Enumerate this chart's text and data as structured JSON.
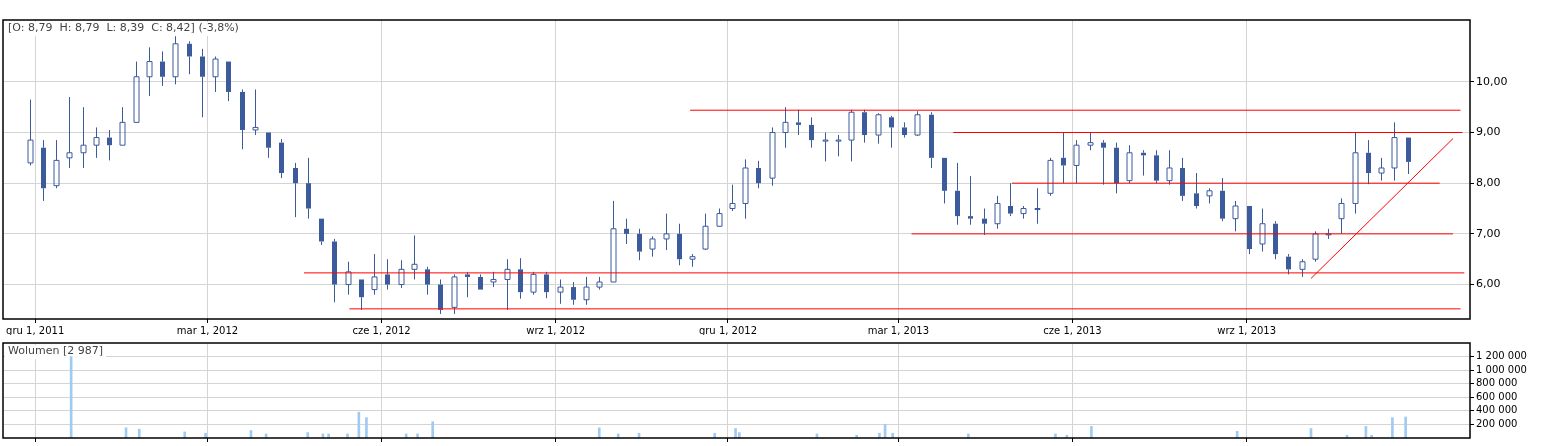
{
  "chart_data": [
    {
      "type": "candlestick",
      "annotations": [
        "[O: 8,79  H: 8,79  L: 8,39  C: 8,42] (-3,8%)"
      ],
      "color": "#3b5b9d",
      "x": [
        "2011-11-28",
        "2011-12-05",
        "2011-12-12",
        "2011-12-19",
        "2011-12-26",
        "2012-01-02",
        "2012-01-09",
        "2012-01-16",
        "2012-01-23",
        "2012-01-30",
        "2012-02-06",
        "2012-02-13",
        "2012-02-20",
        "2012-02-27",
        "2012-03-05",
        "2012-03-12",
        "2012-03-19",
        "2012-03-26",
        "2012-04-02",
        "2012-04-09",
        "2012-04-16",
        "2012-04-23",
        "2012-04-30",
        "2012-05-07",
        "2012-05-14",
        "2012-05-21",
        "2012-05-28",
        "2012-06-04",
        "2012-06-11",
        "2012-06-18",
        "2012-06-25",
        "2012-07-02",
        "2012-07-09",
        "2012-07-16",
        "2012-07-23",
        "2012-07-30",
        "2012-08-06",
        "2012-08-13",
        "2012-08-20",
        "2012-08-27",
        "2012-09-03",
        "2012-09-10",
        "2012-09-17",
        "2012-09-24",
        "2012-10-01",
        "2012-10-08",
        "2012-10-15",
        "2012-10-22",
        "2012-10-29",
        "2012-11-05",
        "2012-11-12",
        "2012-11-19",
        "2012-11-26",
        "2012-12-03",
        "2012-12-10",
        "2012-12-17",
        "2012-12-24",
        "2012-12-31",
        "2013-01-07",
        "2013-01-14",
        "2013-01-21",
        "2013-01-28",
        "2013-02-04",
        "2013-02-11",
        "2013-02-18",
        "2013-02-25",
        "2013-03-04",
        "2013-03-11",
        "2013-03-18",
        "2013-03-25",
        "2013-04-01",
        "2013-04-08",
        "2013-04-15",
        "2013-04-22",
        "2013-04-29",
        "2013-05-06",
        "2013-05-13",
        "2013-05-20",
        "2013-05-27",
        "2013-06-03",
        "2013-06-10",
        "2013-06-17",
        "2013-06-24",
        "2013-07-01",
        "2013-07-08",
        "2013-07-15",
        "2013-07-22",
        "2013-07-29",
        "2013-08-05",
        "2013-08-12",
        "2013-08-19",
        "2013-08-26",
        "2013-09-02",
        "2013-09-09",
        "2013-09-16",
        "2013-09-23",
        "2013-09-30",
        "2013-10-07",
        "2013-10-14",
        "2013-10-21",
        "2013-10-28",
        "2013-11-04",
        "2013-11-11",
        "2013-11-18",
        "2013-11-25"
      ],
      "ohlc": [
        [
          8.4,
          9.65,
          8.35,
          8.85
        ],
        [
          8.7,
          8.85,
          7.65,
          7.9
        ],
        [
          7.95,
          8.85,
          7.9,
          8.45
        ],
        [
          8.5,
          9.7,
          8.3,
          8.6
        ],
        [
          8.6,
          9.5,
          8.3,
          8.75
        ],
        [
          8.75,
          9.1,
          8.5,
          8.9
        ],
        [
          8.9,
          9.05,
          8.45,
          8.75
        ],
        [
          8.75,
          9.5,
          8.75,
          9.2
        ],
        [
          9.2,
          10.4,
          9.2,
          10.1
        ],
        [
          10.1,
          10.68,
          9.72,
          10.4
        ],
        [
          10.4,
          10.6,
          9.92,
          10.1
        ],
        [
          10.1,
          10.9,
          9.95,
          10.75
        ],
        [
          10.75,
          10.8,
          10.15,
          10.5
        ],
        [
          10.5,
          10.65,
          9.3,
          10.1
        ],
        [
          10.1,
          10.5,
          9.8,
          10.45
        ],
        [
          10.4,
          10.4,
          9.62,
          9.8
        ],
        [
          9.8,
          9.85,
          8.67,
          9.05
        ],
        [
          9.05,
          9.85,
          8.95,
          9.1
        ],
        [
          9.0,
          9.0,
          8.5,
          8.7
        ],
        [
          8.8,
          8.87,
          8.1,
          8.2
        ],
        [
          8.3,
          8.4,
          7.33,
          8.0
        ],
        [
          8.0,
          8.5,
          7.3,
          7.5
        ],
        [
          7.3,
          7.3,
          6.78,
          6.85
        ],
        [
          6.85,
          6.9,
          5.65,
          6.0
        ],
        [
          6.0,
          6.45,
          5.8,
          6.25
        ],
        [
          6.1,
          6.1,
          5.5,
          5.75
        ],
        [
          5.9,
          6.6,
          5.8,
          6.15
        ],
        [
          6.2,
          6.5,
          5.9,
          6.0
        ],
        [
          6.0,
          6.48,
          5.93,
          6.3
        ],
        [
          6.3,
          6.97,
          6.1,
          6.4
        ],
        [
          6.3,
          6.35,
          5.8,
          6.0
        ],
        [
          6.0,
          6.1,
          5.42,
          5.5
        ],
        [
          5.55,
          6.2,
          5.42,
          6.15
        ],
        [
          6.2,
          6.25,
          5.75,
          6.15
        ],
        [
          6.15,
          6.2,
          5.9,
          5.9
        ],
        [
          6.05,
          6.25,
          5.95,
          6.1
        ],
        [
          6.1,
          6.5,
          5.5,
          6.3
        ],
        [
          6.3,
          6.52,
          5.72,
          5.85
        ],
        [
          5.85,
          6.25,
          5.8,
          6.2
        ],
        [
          6.2,
          6.25,
          5.73,
          5.85
        ],
        [
          5.85,
          6.1,
          5.62,
          5.95
        ],
        [
          5.95,
          6.05,
          5.6,
          5.7
        ],
        [
          5.7,
          6.15,
          5.6,
          5.95
        ],
        [
          5.95,
          6.15,
          5.9,
          6.05
        ],
        [
          6.05,
          7.65,
          6.05,
          7.1
        ],
        [
          7.1,
          7.3,
          6.8,
          7.0
        ],
        [
          7.0,
          7.1,
          6.48,
          6.65
        ],
        [
          6.7,
          6.95,
          6.55,
          6.9
        ],
        [
          6.9,
          7.4,
          6.68,
          7.0
        ],
        [
          7.0,
          7.2,
          6.38,
          6.5
        ],
        [
          6.5,
          6.6,
          6.35,
          6.55
        ],
        [
          6.7,
          7.4,
          6.68,
          7.15
        ],
        [
          7.15,
          7.5,
          7.15,
          7.4
        ],
        [
          7.5,
          7.97,
          7.45,
          7.6
        ],
        [
          7.6,
          8.47,
          7.3,
          8.3
        ],
        [
          8.3,
          8.44,
          7.9,
          8.0
        ],
        [
          8.1,
          9.1,
          7.95,
          9.0
        ],
        [
          9.0,
          9.5,
          8.7,
          9.2
        ],
        [
          9.2,
          9.45,
          8.95,
          9.15
        ],
        [
          9.15,
          9.3,
          8.7,
          8.85
        ],
        [
          8.85,
          9.0,
          8.43,
          8.85
        ],
        [
          8.85,
          8.95,
          8.53,
          8.85
        ],
        [
          8.85,
          9.45,
          8.43,
          9.4
        ],
        [
          9.4,
          9.45,
          8.8,
          8.95
        ],
        [
          8.95,
          9.38,
          8.78,
          9.35
        ],
        [
          9.3,
          9.33,
          8.7,
          9.1
        ],
        [
          9.1,
          9.2,
          8.9,
          8.95
        ],
        [
          8.95,
          9.42,
          8.93,
          9.35
        ],
        [
          9.35,
          9.4,
          8.3,
          8.5
        ],
        [
          8.5,
          8.5,
          7.6,
          7.85
        ],
        [
          7.85,
          8.4,
          7.18,
          7.35
        ],
        [
          7.35,
          8.14,
          7.18,
          7.3
        ],
        [
          7.3,
          7.5,
          6.98,
          7.2
        ],
        [
          7.2,
          7.75,
          7.1,
          7.6
        ],
        [
          7.55,
          8.0,
          7.35,
          7.4
        ],
        [
          7.4,
          7.55,
          7.3,
          7.5
        ],
        [
          7.5,
          7.9,
          7.2,
          7.5
        ],
        [
          7.8,
          8.5,
          7.75,
          8.45
        ],
        [
          8.5,
          9.0,
          8.0,
          8.35
        ],
        [
          8.35,
          8.85,
          8.0,
          8.75
        ],
        [
          8.75,
          9.0,
          8.65,
          8.8
        ],
        [
          8.8,
          8.85,
          7.97,
          8.7
        ],
        [
          8.7,
          8.8,
          7.8,
          8.0
        ],
        [
          8.05,
          8.75,
          8.0,
          8.6
        ],
        [
          8.6,
          8.65,
          8.15,
          8.55
        ],
        [
          8.55,
          8.65,
          8.0,
          8.05
        ],
        [
          8.05,
          8.65,
          7.97,
          8.3
        ],
        [
          8.3,
          8.5,
          7.65,
          7.75
        ],
        [
          7.8,
          8.2,
          7.5,
          7.55
        ],
        [
          7.75,
          7.9,
          7.6,
          7.85
        ],
        [
          7.85,
          8.1,
          7.25,
          7.3
        ],
        [
          7.3,
          7.65,
          7.05,
          7.55
        ],
        [
          7.55,
          7.55,
          6.6,
          6.7
        ],
        [
          6.8,
          7.5,
          6.65,
          7.2
        ],
        [
          7.2,
          7.25,
          6.5,
          6.6
        ],
        [
          6.55,
          6.6,
          6.2,
          6.3
        ],
        [
          6.3,
          6.5,
          6.15,
          6.45
        ],
        [
          6.5,
          7.05,
          6.45,
          7.0
        ],
        [
          7.0,
          7.1,
          6.9,
          7.0
        ],
        [
          7.3,
          7.7,
          7.0,
          7.6
        ],
        [
          7.6,
          9.0,
          7.4,
          8.6
        ],
        [
          8.6,
          8.85,
          7.98,
          8.2
        ],
        [
          8.2,
          8.5,
          8.05,
          8.3
        ],
        [
          8.3,
          9.2,
          8.05,
          8.9
        ],
        [
          8.9,
          8.9,
          8.18,
          8.42
        ]
      ],
      "series": [
        {
          "type": "line",
          "color": "#ff0000",
          "x": [
            "2012-11-11",
            "2013-12-23"
          ],
          "values": [
            9.44,
            9.44
          ]
        },
        {
          "type": "line",
          "color": "#ff0000",
          "x": [
            "2013-03-30",
            "2013-12-24"
          ],
          "values": [
            9.0,
            9.0
          ]
        },
        {
          "type": "line",
          "color": "#ff0000",
          "x": [
            "2013-04-30",
            "2013-12-12"
          ],
          "values": [
            8.0,
            8.0
          ]
        },
        {
          "type": "line",
          "color": "#ff0000",
          "x": [
            "2013-03-08",
            "2013-12-19"
          ],
          "values": [
            7.0,
            7.0
          ]
        },
        {
          "type": "line",
          "color": "#ff0000",
          "x": [
            "2012-04-21",
            "2013-12-25"
          ],
          "values": [
            6.23,
            6.23
          ]
        },
        {
          "type": "line",
          "color": "#ff0000",
          "x": [
            "2012-05-15",
            "2013-12-23"
          ],
          "values": [
            5.52,
            5.52
          ]
        },
        {
          "type": "line",
          "color": "#ff0000",
          "x": [
            "2013-10-05",
            "2013-12-19"
          ],
          "values": [
            6.12,
            8.88
          ]
        }
      ],
      "xlim": [
        "2011-11-14",
        "2013-12-28"
      ],
      "xticks": [
        {
          "value": "2011-12-01",
          "label": "gru 1, 2011"
        },
        {
          "value": "2012-03-01",
          "label": "mar 1, 2012"
        },
        {
          "value": "2012-06-01",
          "label": "cze 1, 2012"
        },
        {
          "value": "2012-09-01",
          "label": "wrz 1, 2012"
        },
        {
          "value": "2012-12-01",
          "label": "gru 1, 2012"
        },
        {
          "value": "2013-03-01",
          "label": "mar 1, 2013"
        },
        {
          "value": "2013-06-01",
          "label": "cze 1, 2013"
        },
        {
          "value": "2013-09-01",
          "label": "wrz 1, 2013"
        }
      ],
      "ylim": [
        5.32,
        11.22
      ],
      "yticks": [
        {
          "value": 6,
          "label": "6,00"
        },
        {
          "value": 7,
          "label": "7,00"
        },
        {
          "value": 8,
          "label": "8,00"
        },
        {
          "value": 9,
          "label": "9,00"
        },
        {
          "value": 10,
          "label": "10,00"
        }
      ],
      "grid": true,
      "legend": false
    },
    {
      "type": "bar",
      "title": "Wolumen [2 987]",
      "color": "#9fcbf2",
      "x": [
        "2011-12-20",
        "2012-01-18",
        "2012-01-25",
        "2012-02-18",
        "2012-02-29",
        "2012-03-24",
        "2012-04-01",
        "2012-04-23",
        "2012-05-01",
        "2012-05-04",
        "2012-05-14",
        "2012-05-20",
        "2012-05-24",
        "2012-06-14",
        "2012-06-20",
        "2012-06-28",
        "2012-09-24",
        "2012-10-04",
        "2012-10-15",
        "2012-11-24",
        "2012-12-05",
        "2012-12-07",
        "2013-01-17",
        "2013-02-07",
        "2013-02-19",
        "2013-02-22",
        "2013-02-26",
        "2013-04-07",
        "2013-05-23",
        "2013-05-29",
        "2013-06-11",
        "2013-08-27",
        "2013-10-05",
        "2013-10-24",
        "2013-11-03",
        "2013-11-06",
        "2013-11-17",
        "2013-11-24"
      ],
      "values": [
        1200000,
        150000,
        130000,
        90000,
        70000,
        110000,
        60000,
        80000,
        60000,
        60000,
        60000,
        380000,
        300000,
        60000,
        60000,
        240000,
        150000,
        60000,
        70000,
        70000,
        140000,
        80000,
        60000,
        40000,
        70000,
        200000,
        70000,
        60000,
        60000,
        40000,
        170000,
        100000,
        140000,
        40000,
        170000,
        40000,
        300000,
        310000
      ],
      "xlim": [
        "2011-11-14",
        "2013-12-28"
      ],
      "xticks": [
        {
          "value": "2011-12-01",
          "label": null
        },
        {
          "value": "2012-03-01",
          "label": null
        },
        {
          "value": "2012-06-01",
          "label": null
        },
        {
          "value": "2012-09-01",
          "label": null
        },
        {
          "value": "2012-12-01",
          "label": null
        },
        {
          "value": "2013-03-01",
          "label": null
        },
        {
          "value": "2013-06-01",
          "label": null
        },
        {
          "value": "2013-09-01",
          "label": null
        }
      ],
      "ylim": [
        0,
        1400000
      ],
      "yticks": [
        {
          "value": 200000,
          "label": "200 000"
        },
        {
          "value": 400000,
          "label": "400 000"
        },
        {
          "value": 600000,
          "label": "600 000"
        },
        {
          "value": 800000,
          "label": "800 000"
        },
        {
          "value": 1000000,
          "label": "1 000 000"
        },
        {
          "value": 1200000,
          "label": "1 200 000"
        }
      ],
      "grid": true,
      "legend": false,
      "tick_labels": "y"
    }
  ]
}
